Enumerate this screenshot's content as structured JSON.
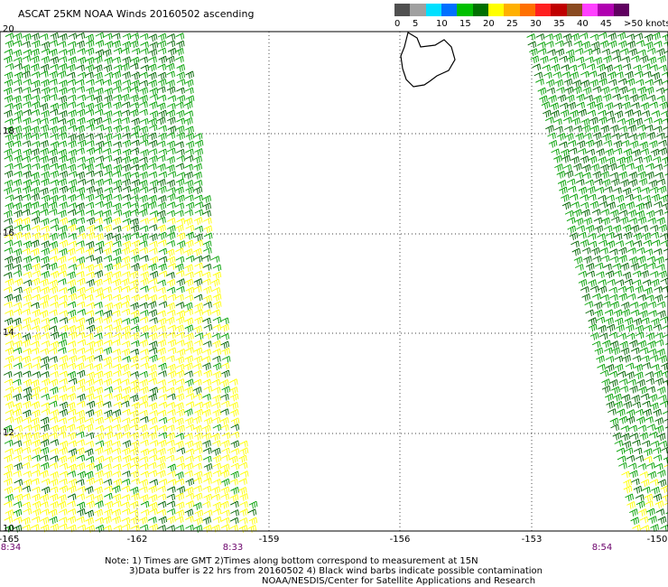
{
  "title": "ASCAT 25KM NOAA Winds 20160502 ascending",
  "legend": {
    "colors": [
      "#505050",
      "#a0a0a0",
      "#00e0ff",
      "#0070ff",
      "#00c000",
      "#007000",
      "#ffff00",
      "#ffb000",
      "#ff7000",
      "#ff2020",
      "#c00000",
      "#8a4a20",
      "#ff40ff",
      "#b000b0",
      "#600060"
    ],
    "labels": [
      "0",
      "5",
      "10",
      "15",
      "20",
      "25",
      "30",
      "35",
      "40",
      "45",
      ">50 knots"
    ]
  },
  "chart_data": {
    "type": "map",
    "lat_range": [
      10,
      20
    ],
    "lon_range": [
      -165,
      -150
    ],
    "lat_ticks": [
      "20",
      "18",
      "16",
      "14",
      "12",
      "10"
    ],
    "lon_ticks": [
      "-165",
      "-162",
      "-159",
      "-156",
      "-153",
      "-150"
    ],
    "gridlines": true,
    "swath_times": [
      "8:34",
      "8:33",
      "8:54"
    ]
  },
  "notes": {
    "line1": "Note: 1) Times are GMT 2)Times along bottom correspond to measurement at 15N",
    "line2": "3)Data buffer is 22 hrs from 20160502 4) Black wind barbs indicate possible contamination",
    "line3": "NOAA/NESDIS/Center for Satellite Applications and Research"
  }
}
